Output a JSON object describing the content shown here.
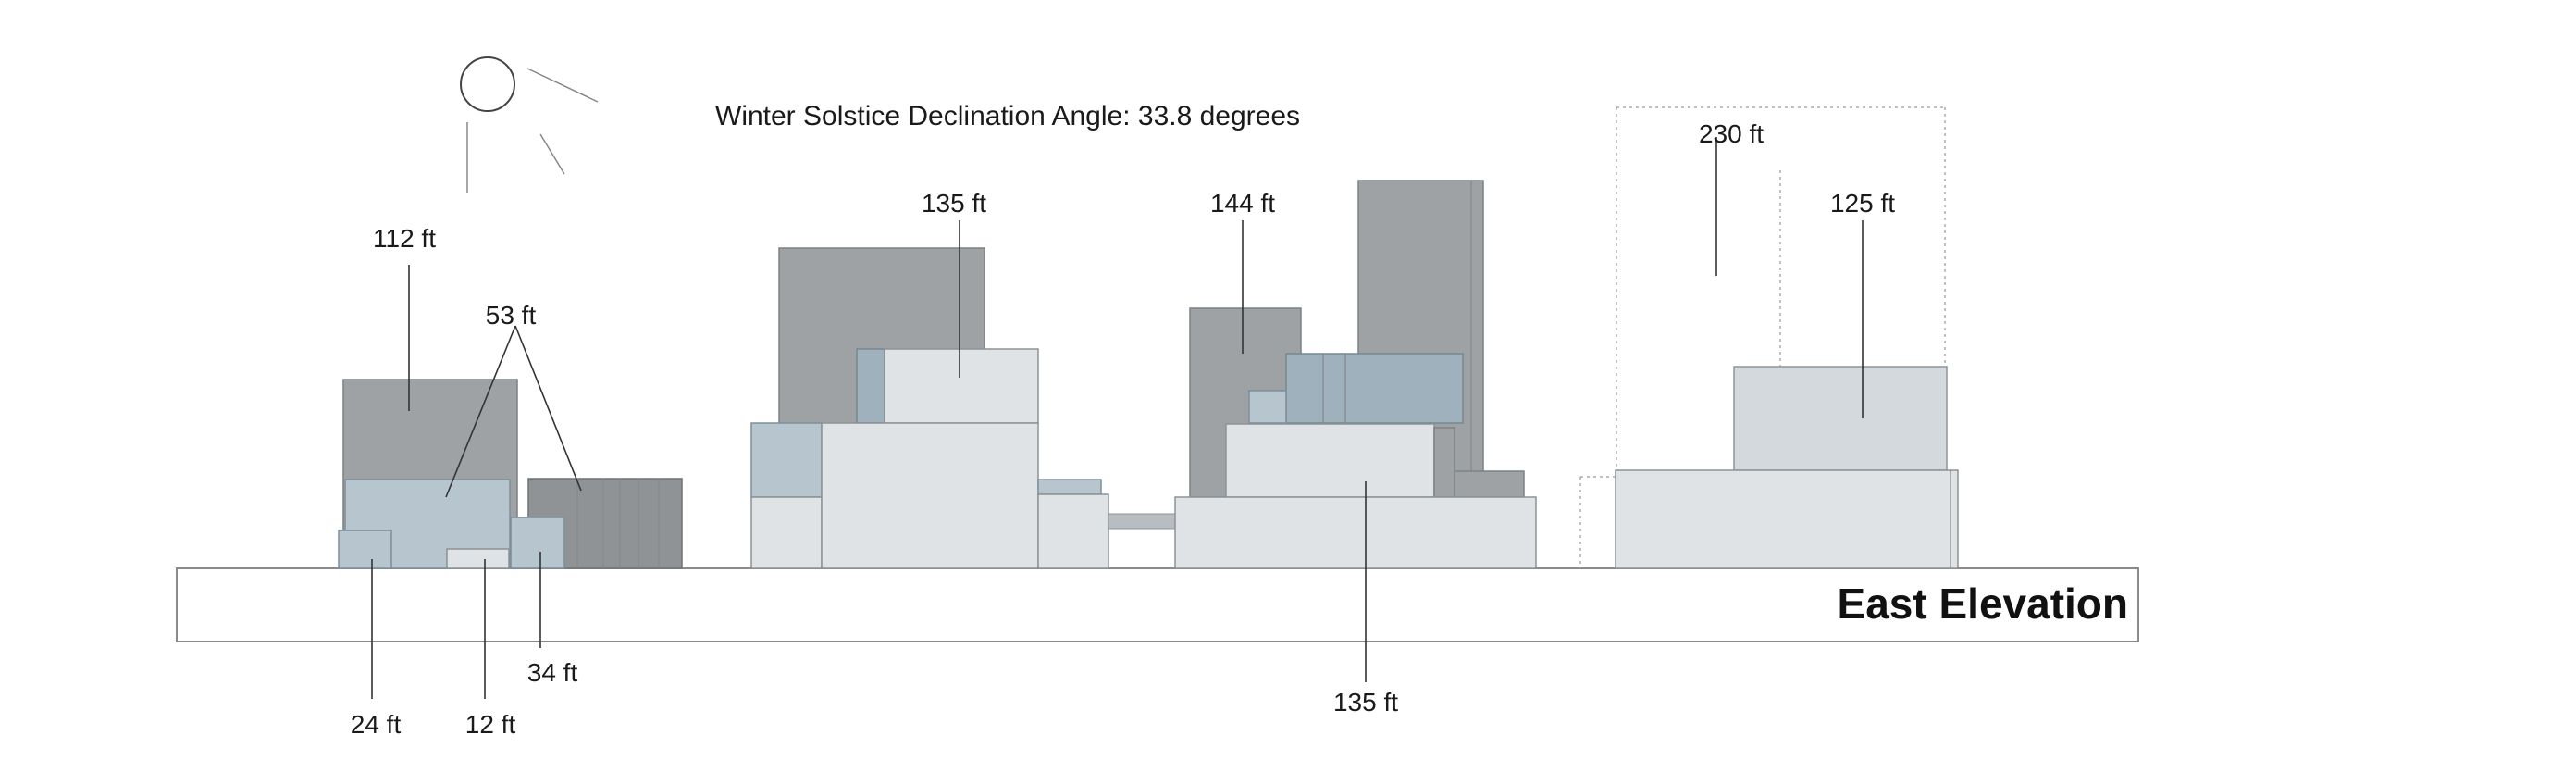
{
  "diagram": {
    "title": "Winter Solstice Declination Angle: 33.8 degrees",
    "elevation_label": "East Elevation",
    "height_labels": {
      "b1_main": "112 ft",
      "b1_mid": "53 ft",
      "b1_small_a": "24 ft",
      "b1_small_b": "12 ft",
      "b1_small_c": "34 ft",
      "b2_top": "135 ft",
      "b3_tower": "144 ft",
      "b3_base": "135 ft",
      "b4_envelope": "230 ft",
      "b4_top": "125 ft"
    },
    "icons": {
      "sun": "sun-icon"
    },
    "colors": {
      "dark_mass": "#9ea2a5",
      "blue_mass": "#b6c5ce",
      "light_mass": "#dfe3e6"
    }
  }
}
